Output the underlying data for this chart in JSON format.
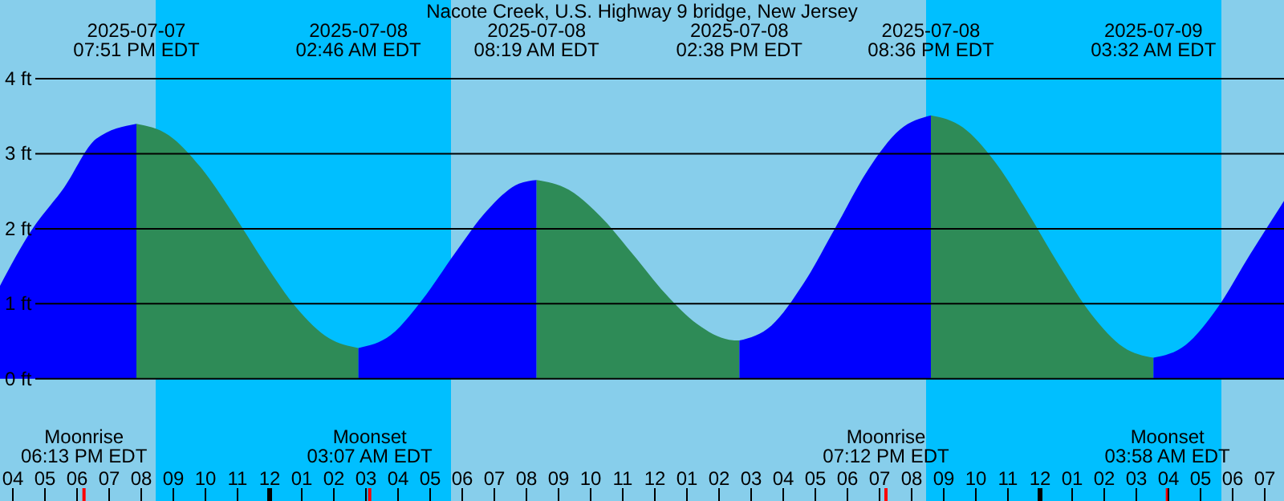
{
  "chart_data": {
    "type": "area",
    "title": "Nacote Creek, U.S. Highway 9 bridge, New Jersey",
    "series": [
      {
        "color": "#0000ff",
        "x": [
          "2025-07-07T15:36",
          "2025-07-07T16:36",
          "2025-07-07T17:36",
          "2025-07-07T18:36",
          "2025-07-07T19:51"
        ],
        "values": [
          1.24,
          1.99,
          2.55,
          3.2,
          3.4
        ]
      },
      {
        "color": "#2e8b57",
        "x": [
          "2025-07-07T19:51",
          "2025-07-07T20:51",
          "2025-07-07T21:51",
          "2025-07-07T22:51",
          "2025-07-07T23:51",
          "2025-07-08T00:51",
          "2025-07-08T01:51",
          "2025-07-08T02:46"
        ],
        "values": [
          3.4,
          3.25,
          2.82,
          2.21,
          1.54,
          0.94,
          0.54,
          0.41
        ]
      },
      {
        "color": "#0000ff",
        "x": [
          "2025-07-08T02:46",
          "2025-07-08T03:46",
          "2025-07-08T04:46",
          "2025-07-08T05:46",
          "2025-07-08T06:46",
          "2025-07-08T07:46",
          "2025-07-08T08:19"
        ],
        "values": [
          0.41,
          0.58,
          1.06,
          1.67,
          2.24,
          2.6,
          2.65
        ]
      },
      {
        "color": "#2e8b57",
        "x": [
          "2025-07-08T08:19",
          "2025-07-08T09:19",
          "2025-07-08T10:19",
          "2025-07-08T11:19",
          "2025-07-08T12:19",
          "2025-07-08T13:19",
          "2025-07-08T14:19",
          "2025-07-08T14:38"
        ],
        "values": [
          2.65,
          2.52,
          2.16,
          1.66,
          1.14,
          0.73,
          0.52,
          0.51
        ]
      },
      {
        "color": "#0000ff",
        "x": [
          "2025-07-08T14:38",
          "2025-07-08T15:38",
          "2025-07-08T16:38",
          "2025-07-08T17:38",
          "2025-07-08T18:38",
          "2025-07-08T19:38",
          "2025-07-08T20:36"
        ],
        "values": [
          0.51,
          0.71,
          1.27,
          2.02,
          2.78,
          3.32,
          3.51
        ]
      },
      {
        "color": "#2e8b57",
        "x": [
          "2025-07-08T20:36",
          "2025-07-08T21:36",
          "2025-07-08T22:36",
          "2025-07-08T23:36",
          "2025-07-09T00:36",
          "2025-07-09T01:36",
          "2025-07-09T02:36",
          "2025-07-09T03:32"
        ],
        "values": [
          3.51,
          3.35,
          2.89,
          2.23,
          1.51,
          0.86,
          0.42,
          0.28
        ]
      },
      {
        "color": "#0000ff",
        "x": [
          "2025-07-09T03:32",
          "2025-07-09T04:32",
          "2025-07-09T05:32",
          "2025-07-09T06:32",
          "2025-07-09T07:36"
        ],
        "values": [
          0.28,
          0.45,
          0.95,
          1.65,
          2.37
        ]
      }
    ],
    "xlim": [
      "2025-07-07T15:36",
      "2025-07-09T07:36"
    ],
    "xticks": [
      {
        "value": "2025-07-07T16:00",
        "label": "04"
      },
      {
        "value": "2025-07-07T17:00",
        "label": "05"
      },
      {
        "value": "2025-07-07T18:00",
        "label": "06"
      },
      {
        "value": "2025-07-07T19:00",
        "label": "07"
      },
      {
        "value": "2025-07-07T20:00",
        "label": "08"
      },
      {
        "value": "2025-07-07T21:00",
        "label": "09"
      },
      {
        "value": "2025-07-07T22:00",
        "label": "10"
      },
      {
        "value": "2025-07-07T23:00",
        "label": "11"
      },
      {
        "value": "2025-07-08T00:00",
        "label": "12"
      },
      {
        "value": "2025-07-08T01:00",
        "label": "01"
      },
      {
        "value": "2025-07-08T02:00",
        "label": "02"
      },
      {
        "value": "2025-07-08T03:00",
        "label": "03"
      },
      {
        "value": "2025-07-08T04:00",
        "label": "04"
      },
      {
        "value": "2025-07-08T05:00",
        "label": "05"
      },
      {
        "value": "2025-07-08T06:00",
        "label": "06"
      },
      {
        "value": "2025-07-08T07:00",
        "label": "07"
      },
      {
        "value": "2025-07-08T08:00",
        "label": "08"
      },
      {
        "value": "2025-07-08T09:00",
        "label": "09"
      },
      {
        "value": "2025-07-08T10:00",
        "label": "10"
      },
      {
        "value": "2025-07-08T11:00",
        "label": "11"
      },
      {
        "value": "2025-07-08T12:00",
        "label": "12"
      },
      {
        "value": "2025-07-08T13:00",
        "label": "01"
      },
      {
        "value": "2025-07-08T14:00",
        "label": "02"
      },
      {
        "value": "2025-07-08T15:00",
        "label": "03"
      },
      {
        "value": "2025-07-08T16:00",
        "label": "04"
      },
      {
        "value": "2025-07-08T17:00",
        "label": "05"
      },
      {
        "value": "2025-07-08T18:00",
        "label": "06"
      },
      {
        "value": "2025-07-08T19:00",
        "label": "07"
      },
      {
        "value": "2025-07-08T20:00",
        "label": "08"
      },
      {
        "value": "2025-07-08T21:00",
        "label": "09"
      },
      {
        "value": "2025-07-08T22:00",
        "label": "10"
      },
      {
        "value": "2025-07-08T23:00",
        "label": "11"
      },
      {
        "value": "2025-07-09T00:00",
        "label": "12"
      },
      {
        "value": "2025-07-09T01:00",
        "label": "01"
      },
      {
        "value": "2025-07-09T02:00",
        "label": "02"
      },
      {
        "value": "2025-07-09T03:00",
        "label": "03"
      },
      {
        "value": "2025-07-09T04:00",
        "label": "04"
      },
      {
        "value": "2025-07-09T05:00",
        "label": "05"
      },
      {
        "value": "2025-07-09T06:00",
        "label": "06"
      },
      {
        "value": "2025-07-09T07:00",
        "label": "07"
      }
    ],
    "ylim": [
      -1.63,
      5.05
    ],
    "yticks": [
      {
        "value": 0,
        "label": "0 ft"
      },
      {
        "value": 1,
        "label": "1 ft"
      },
      {
        "value": 2,
        "label": "2 ft"
      },
      {
        "value": 3,
        "label": "3 ft"
      },
      {
        "value": 4,
        "label": "4 ft"
      }
    ],
    "grid": "y",
    "bands": [
      {
        "axis": "x",
        "from": "2025-07-07T20:27",
        "to": "2025-07-08T05:39",
        "color": "#00bfff"
      },
      {
        "axis": "x",
        "from": "2025-07-08T20:27",
        "to": "2025-07-09T05:39",
        "color": "#00bfff"
      }
    ],
    "ref_lines": [
      {
        "axis": "x",
        "value": "2025-07-07T18:13",
        "label": "Moonrise\n06:13 PM EDT",
        "color": "#ff0000"
      },
      {
        "axis": "x",
        "value": "2025-07-08T03:07",
        "label": "Moonset\n03:07 AM EDT",
        "color": "#ff0000"
      },
      {
        "axis": "x",
        "value": "2025-07-08T19:12",
        "label": "Moonrise\n07:12 PM EDT",
        "color": "#ff0000"
      },
      {
        "axis": "x",
        "value": "2025-07-09T03:58",
        "label": "Moonset\n03:58 AM EDT",
        "color": "#ff0000"
      }
    ],
    "annotations": [
      "2025-07-07\n07:51 PM EDT",
      "2025-07-08\n02:46 AM EDT",
      "2025-07-08\n08:19 AM EDT",
      "2025-07-08\n02:38 PM EDT",
      "2025-07-08\n08:36 PM EDT",
      "2025-07-09\n03:32 AM EDT"
    ]
  }
}
